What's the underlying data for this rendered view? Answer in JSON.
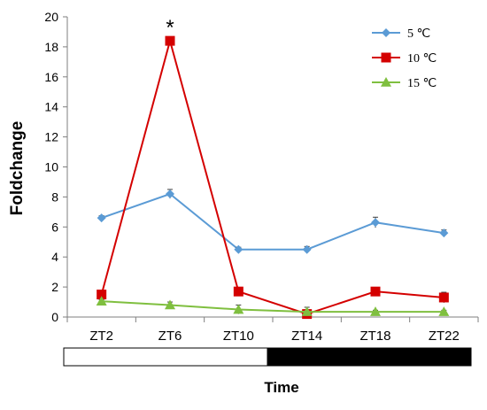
{
  "chart_data": {
    "type": "line",
    "categories": [
      "ZT2",
      "ZT6",
      "ZT10",
      "ZT14",
      "ZT18",
      "ZT22"
    ],
    "xlabel": "Time",
    "ylabel": "Foldchange",
    "ylim": [
      0,
      20
    ],
    "yticks": [
      "0",
      "2",
      "4",
      "6",
      "8",
      "10",
      "12",
      "14",
      "16",
      "18",
      "20"
    ],
    "grid": false,
    "legend_position": "top-right",
    "significance": {
      "label": "*",
      "category": "ZT6",
      "series": "10 ℃"
    },
    "photoperiod_bar": {
      "light_fraction": 0.5
    },
    "series": [
      {
        "name": "5 ℃",
        "color": "#5b9bd5",
        "marker": "diamond",
        "values": [
          6.6,
          8.2,
          4.5,
          4.5,
          6.3,
          5.6
        ],
        "errors": [
          0.15,
          0.3,
          0.15,
          0.2,
          0.35,
          0.2
        ]
      },
      {
        "name": "10 ℃",
        "color": "#d40000",
        "marker": "square",
        "values": [
          1.5,
          18.4,
          1.7,
          0.2,
          1.7,
          1.3
        ],
        "errors": [
          0.15,
          0.2,
          0.25,
          0.3,
          0.15,
          0.35
        ]
      },
      {
        "name": "15 ℃",
        "color": "#7fbf3f",
        "marker": "triangle",
        "values": [
          1.05,
          0.8,
          0.5,
          0.35,
          0.35,
          0.35
        ],
        "errors": [
          0.1,
          0.2,
          0.3,
          0.3,
          0.1,
          0.1
        ]
      }
    ]
  }
}
